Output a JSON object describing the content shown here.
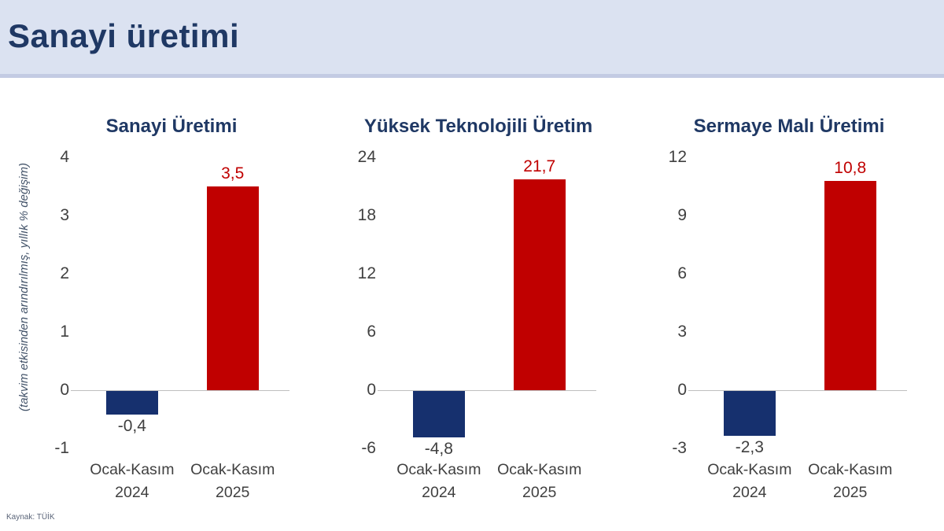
{
  "header": {
    "title": "Sanayi üretimi"
  },
  "y_axis_note": "(takvim etkisinden arındırılmış, yıllık % değişim)",
  "footer": {
    "source": "Kaynak: TÜİK"
  },
  "colors": {
    "header_bg": "#dbe2f1",
    "header_text": "#1f3864",
    "title_text": "#1f3864",
    "bar_2024": "#16306e",
    "bar_2025": "#c00000",
    "bars": [
      "#16306e",
      "#c00000"
    ],
    "value_labels": [
      "#404040",
      "#c00000"
    ],
    "axis_line": "#bfbfbf",
    "tick_text": "#404040"
  },
  "chart_data": [
    {
      "type": "bar",
      "title": "Sanayi Üretimi",
      "categories": [
        "Ocak-Kasım 2024",
        "Ocak-Kasım 2025"
      ],
      "values": [
        -0.4,
        3.5
      ],
      "value_labels": [
        "-0,4",
        "3,5"
      ],
      "yticks": [
        4,
        3,
        2,
        1,
        0,
        -1
      ],
      "ylim": [
        -1,
        4
      ],
      "ylabel": "(takvim etkisinden arındırılmış, yıllık % değişim)",
      "grid": false,
      "legend": false
    },
    {
      "type": "bar",
      "title": "Yüksek Teknolojili Üretim",
      "categories": [
        "Ocak-Kasım 2024",
        "Ocak-Kasım 2025"
      ],
      "values": [
        -4.8,
        21.7
      ],
      "value_labels": [
        "-4,8",
        "21,7"
      ],
      "yticks": [
        24,
        18,
        12,
        6,
        0,
        -6
      ],
      "ylim": [
        -6,
        24
      ],
      "grid": false,
      "legend": false
    },
    {
      "type": "bar",
      "title": "Sermaye Malı Üretimi",
      "categories": [
        "Ocak-Kasım 2024",
        "Ocak-Kasım 2025"
      ],
      "values": [
        -2.3,
        10.8
      ],
      "value_labels": [
        "-2,3",
        "10,8"
      ],
      "yticks": [
        12,
        9,
        6,
        3,
        0,
        -3
      ],
      "ylim": [
        -3,
        12
      ],
      "grid": false,
      "legend": false
    }
  ]
}
